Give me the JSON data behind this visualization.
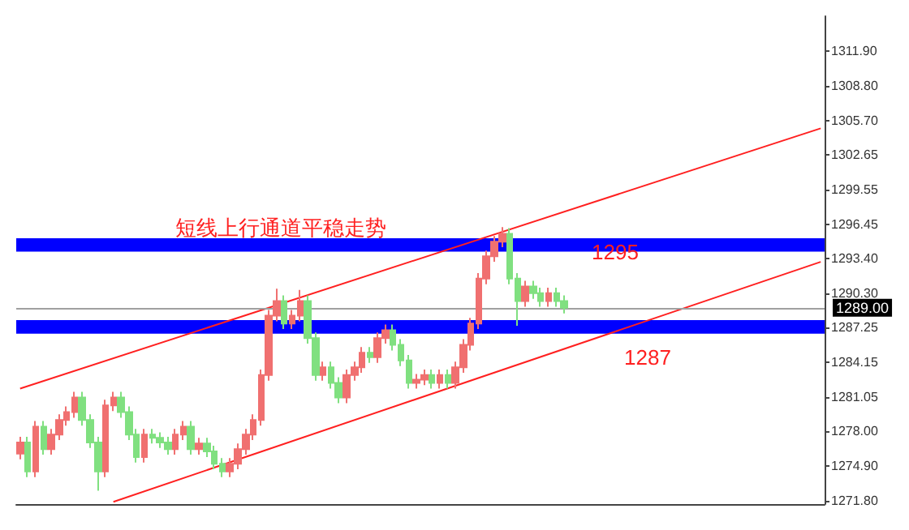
{
  "chart_data": {
    "type": "candlestick",
    "annotations": [
      "短线上行通道平稳走势"
    ],
    "categories": [
      null,
      null,
      null,
      null,
      null,
      null,
      null,
      null,
      null,
      null,
      null,
      null,
      null,
      null,
      null,
      null,
      null,
      null,
      null,
      null,
      null,
      null,
      null,
      null,
      null,
      null,
      null,
      null,
      null,
      null,
      null,
      null,
      null,
      null,
      null,
      null,
      null,
      null,
      null,
      null,
      null,
      null,
      null,
      null,
      null,
      null,
      null,
      null,
      null,
      null,
      null,
      null,
      null,
      null,
      null,
      null,
      null,
      null,
      null,
      null,
      null,
      null,
      null,
      null,
      null,
      null,
      null,
      null,
      null,
      null,
      null,
      null,
      null,
      null,
      null,
      null,
      null,
      null,
      null,
      null,
      null,
      null,
      null,
      null,
      null,
      null,
      null,
      null,
      null,
      null,
      null,
      null,
      null,
      null,
      null,
      null,
      null,
      null,
      null,
      null,
      null,
      null,
      null,
      null
    ],
    "ohlc": [
      [
        1276.0,
        1277.5,
        1275.5,
        1277.0
      ],
      [
        1277.0,
        1277.5,
        1273.9,
        1274.4
      ],
      [
        1274.4,
        1278.9,
        1273.9,
        1278.4
      ],
      [
        1278.4,
        1278.9,
        1275.9,
        1276.4
      ],
      [
        1276.4,
        1278.2,
        1275.9,
        1277.7
      ],
      [
        1277.7,
        1279.5,
        1277.2,
        1279.0
      ],
      [
        1279.0,
        1280.2,
        1278.5,
        1279.7
      ],
      [
        1279.7,
        1281.5,
        1279.2,
        1281.0
      ],
      [
        1281.0,
        1281.5,
        1278.5,
        1279.0
      ],
      [
        1279.0,
        1279.5,
        1276.5,
        1277.0
      ],
      [
        1277.0,
        1277.5,
        1272.7,
        1274.4
      ],
      [
        1274.4,
        1280.8,
        1273.9,
        1280.3
      ],
      [
        1280.3,
        1281.5,
        1279.8,
        1281.0
      ],
      [
        1281.0,
        1281.5,
        1279.2,
        1279.7
      ],
      [
        1279.7,
        1280.2,
        1277.2,
        1277.7
      ],
      [
        1277.7,
        1278.2,
        1275.2,
        1275.7
      ],
      [
        1275.7,
        1278.2,
        1275.2,
        1277.7
      ],
      [
        1277.7,
        1278.2,
        1276.9,
        1277.4
      ],
      [
        1277.4,
        1277.9,
        1276.5,
        1277.0
      ],
      [
        1277.0,
        1277.5,
        1275.9,
        1276.4
      ],
      [
        1276.4,
        1278.2,
        1275.9,
        1277.7
      ],
      [
        1277.7,
        1278.9,
        1277.2,
        1278.4
      ],
      [
        1278.4,
        1278.9,
        1275.9,
        1276.4
      ],
      [
        1276.4,
        1277.4,
        1275.9,
        1276.9
      ],
      [
        1276.9,
        1277.4,
        1275.7,
        1276.2
      ],
      [
        1276.2,
        1276.7,
        1274.6,
        1275.1
      ],
      [
        1275.1,
        1275.6,
        1273.9,
        1274.4
      ],
      [
        1274.4,
        1275.6,
        1273.9,
        1275.1
      ],
      [
        1275.1,
        1276.9,
        1274.6,
        1276.4
      ],
      [
        1276.4,
        1278.2,
        1275.9,
        1277.7
      ],
      [
        1277.7,
        1279.5,
        1277.2,
        1279.0
      ],
      [
        1279.0,
        1283.5,
        1278.5,
        1283.0
      ],
      [
        1283.0,
        1288.8,
        1282.5,
        1288.3
      ],
      [
        1288.3,
        1290.7,
        1287.8,
        1289.6
      ],
      [
        1289.6,
        1290.1,
        1287.1,
        1287.6
      ],
      [
        1287.6,
        1288.8,
        1287.1,
        1288.3
      ],
      [
        1288.3,
        1290.6,
        1287.8,
        1289.6
      ],
      [
        1289.6,
        1290.1,
        1285.8,
        1286.3
      ],
      [
        1286.3,
        1286.8,
        1282.5,
        1283.0
      ],
      [
        1283.0,
        1284.2,
        1282.5,
        1283.7
      ],
      [
        1283.7,
        1284.2,
        1281.8,
        1282.3
      ],
      [
        1282.3,
        1282.8,
        1280.5,
        1281.0
      ],
      [
        1281.0,
        1283.5,
        1280.5,
        1283.0
      ],
      [
        1283.0,
        1284.2,
        1282.5,
        1283.7
      ],
      [
        1283.7,
        1285.5,
        1283.2,
        1285.0
      ],
      [
        1285.0,
        1285.5,
        1284.1,
        1284.6
      ],
      [
        1284.6,
        1286.8,
        1284.1,
        1286.3
      ],
      [
        1286.3,
        1287.5,
        1285.8,
        1287.0
      ],
      [
        1287.0,
        1287.5,
        1285.2,
        1285.7
      ],
      [
        1285.7,
        1286.2,
        1283.8,
        1284.3
      ],
      [
        1284.3,
        1284.8,
        1281.8,
        1282.3
      ],
      [
        1282.3,
        1283.1,
        1281.8,
        1282.6
      ],
      [
        1282.6,
        1283.5,
        1282.1,
        1283.0
      ],
      [
        1283.0,
        1283.5,
        1281.8,
        1282.3
      ],
      [
        1282.3,
        1283.5,
        1281.8,
        1283.0
      ],
      [
        1283.0,
        1283.5,
        1281.8,
        1282.3
      ],
      [
        1282.3,
        1284.2,
        1281.8,
        1283.7
      ],
      [
        1283.7,
        1286.2,
        1283.2,
        1285.7
      ],
      [
        1285.7,
        1288.1,
        1285.2,
        1287.6
      ],
      [
        1287.6,
        1292.1,
        1287.1,
        1291.6
      ],
      [
        1291.6,
        1294.1,
        1291.1,
        1293.6
      ],
      [
        1293.6,
        1295.4,
        1293.1,
        1294.9
      ],
      [
        1294.9,
        1296.2,
        1294.4,
        1295.6
      ],
      [
        1295.6,
        1296.1,
        1291.1,
        1291.6
      ],
      [
        1291.6,
        1292.1,
        1287.4,
        1289.6
      ],
      [
        1289.6,
        1291.4,
        1289.1,
        1290.9
      ],
      [
        1290.9,
        1291.4,
        1289.8,
        1290.3
      ],
      [
        1290.3,
        1290.8,
        1289.1,
        1289.6
      ],
      [
        1289.6,
        1290.8,
        1289.1,
        1290.3
      ],
      [
        1290.3,
        1290.8,
        1289.1,
        1289.6
      ],
      [
        1289.6,
        1290.1,
        1288.5,
        1289.0
      ],
      null,
      null,
      null,
      null,
      null,
      null,
      null,
      null,
      null,
      null,
      null,
      null,
      null,
      null,
      null,
      null,
      null,
      null,
      null,
      null,
      null,
      null,
      null,
      null,
      null,
      null,
      null,
      null,
      null,
      null,
      null,
      null,
      null
    ],
    "series": [
      {
        "type": "line",
        "color": "#ff2020",
        "values": [
          1281.8,
          null,
          null,
          null,
          null,
          null,
          null,
          null,
          null,
          null,
          null,
          null,
          null,
          null,
          null,
          null,
          null,
          null,
          null,
          null,
          null,
          null,
          null,
          null,
          null,
          null,
          null,
          null,
          null,
          null,
          null,
          null,
          null,
          null,
          null,
          null,
          null,
          null,
          null,
          null,
          null,
          null,
          null,
          null,
          null,
          null,
          null,
          null,
          null,
          null,
          null,
          null,
          null,
          null,
          null,
          null,
          null,
          null,
          null,
          null,
          null,
          null,
          null,
          null,
          null,
          null,
          null,
          null,
          null,
          null,
          null,
          null,
          null,
          null,
          null,
          null,
          null,
          null,
          null,
          null,
          null,
          null,
          null,
          null,
          null,
          null,
          null,
          null,
          null,
          null,
          null,
          null,
          null,
          null,
          null,
          null,
          null,
          null,
          null,
          null,
          null,
          null,
          null,
          1305.0
        ]
      },
      {
        "type": "line",
        "color": "#ff2020",
        "values": [
          null,
          null,
          null,
          null,
          null,
          null,
          null,
          null,
          null,
          null,
          null,
          null,
          1271.7,
          null,
          null,
          null,
          null,
          null,
          null,
          null,
          null,
          null,
          null,
          null,
          null,
          null,
          null,
          null,
          null,
          null,
          null,
          null,
          null,
          null,
          null,
          null,
          null,
          null,
          null,
          null,
          null,
          null,
          null,
          null,
          null,
          null,
          null,
          null,
          null,
          null,
          null,
          null,
          null,
          null,
          null,
          null,
          null,
          null,
          null,
          null,
          null,
          null,
          null,
          null,
          null,
          null,
          null,
          null,
          null,
          null,
          null,
          null,
          null,
          null,
          null,
          null,
          null,
          null,
          null,
          null,
          null,
          null,
          null,
          null,
          null,
          null,
          null,
          null,
          null,
          null,
          null,
          null,
          null,
          null,
          null,
          null,
          null,
          null,
          null,
          null,
          null,
          null,
          null,
          1293.1
        ]
      }
    ],
    "ylim": [
      1271.5,
      1315
    ],
    "yticks": [
      {
        "value": 1271.8,
        "label": "1271.80"
      },
      {
        "value": 1274.9,
        "label": "1274.90"
      },
      {
        "value": 1278.0,
        "label": "1278.00"
      },
      {
        "value": 1281.05,
        "label": "1281.05"
      },
      {
        "value": 1284.15,
        "label": "1284.15"
      },
      {
        "value": 1287.25,
        "label": "1287.25"
      },
      {
        "value": 1290.3,
        "label": "1290.30"
      },
      {
        "value": 1293.4,
        "label": "1293.40"
      },
      {
        "value": 1296.45,
        "label": "1296.45"
      },
      {
        "value": 1299.55,
        "label": "1299.55"
      },
      {
        "value": 1302.65,
        "label": "1302.65"
      },
      {
        "value": 1305.7,
        "label": "1305.70"
      },
      {
        "value": 1308.8,
        "label": "1308.80"
      },
      {
        "value": 1311.9,
        "label": "1311.90"
      }
    ],
    "ref_lines": [
      {
        "axis": "y",
        "value": 1289.0,
        "label": "1289.00",
        "color": "#a0a0a0"
      }
    ],
    "bands": [
      {
        "axis": "y",
        "from": 1294.0,
        "to": 1295.2,
        "label": "1295",
        "color": "#0000ff"
      },
      {
        "axis": "y",
        "from": 1286.7,
        "to": 1287.9,
        "label": "1287",
        "color": "#0000ff"
      }
    ],
    "tick_labels": "y",
    "grid": false
  }
}
